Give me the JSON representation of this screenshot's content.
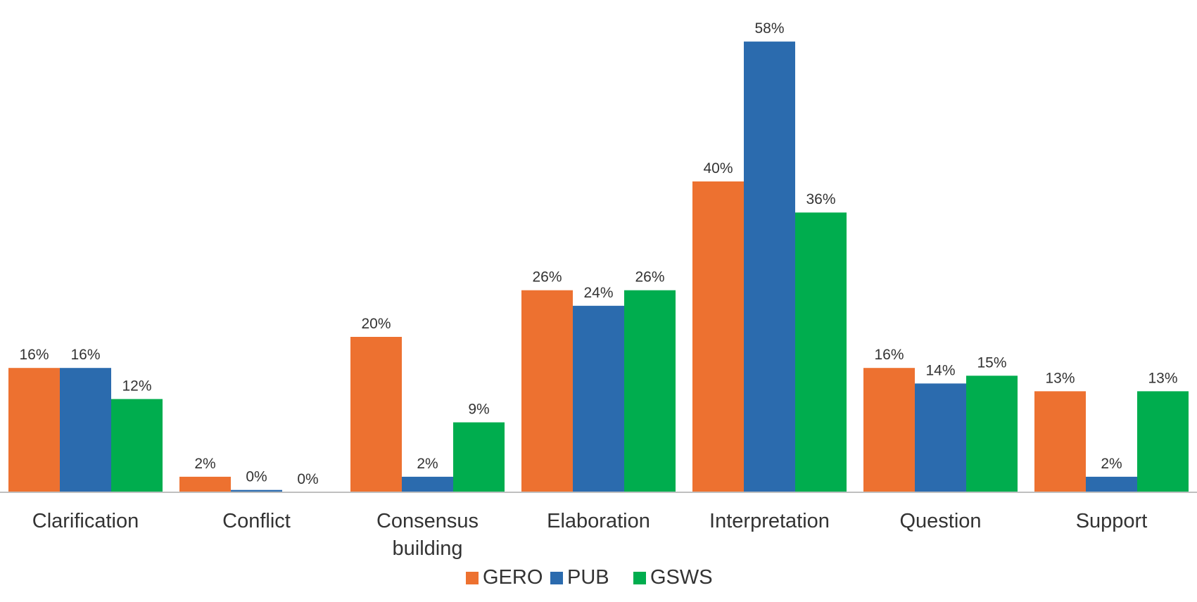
{
  "chart_data": {
    "type": "bar",
    "categories": [
      [
        "Clarification"
      ],
      [
        "Conflict"
      ],
      [
        "Consensus",
        "building"
      ],
      [
        "Elaboration"
      ],
      [
        "Interpretation"
      ],
      [
        "Question"
      ],
      [
        "Support"
      ]
    ],
    "series": [
      {
        "name": "GERO",
        "color": "#ED7130",
        "values": [
          16,
          2,
          20,
          26,
          40,
          16,
          13
        ],
        "labels": [
          "16%",
          "2%",
          "20%",
          "26%",
          "40%",
          "16%",
          "13%"
        ]
      },
      {
        "name": "PUB",
        "color": "#2B6BAE",
        "values": [
          16,
          0.3,
          2,
          24,
          58,
          14,
          2
        ],
        "labels": [
          "16%",
          "0%",
          "2%",
          "24%",
          "58%",
          "14%",
          "2%"
        ]
      },
      {
        "name": "GSWS",
        "color": "#00AD4E",
        "values": [
          12,
          0,
          9,
          26,
          36,
          15,
          13
        ],
        "labels": [
          "12%",
          "0%",
          "9%",
          "26%",
          "36%",
          "15%",
          "13%"
        ]
      }
    ],
    "value_unit": "%",
    "ylim": [
      0,
      60
    ],
    "grid": false,
    "legend_position": "bottom-center",
    "title": "",
    "xlabel": "",
    "ylabel": ""
  }
}
